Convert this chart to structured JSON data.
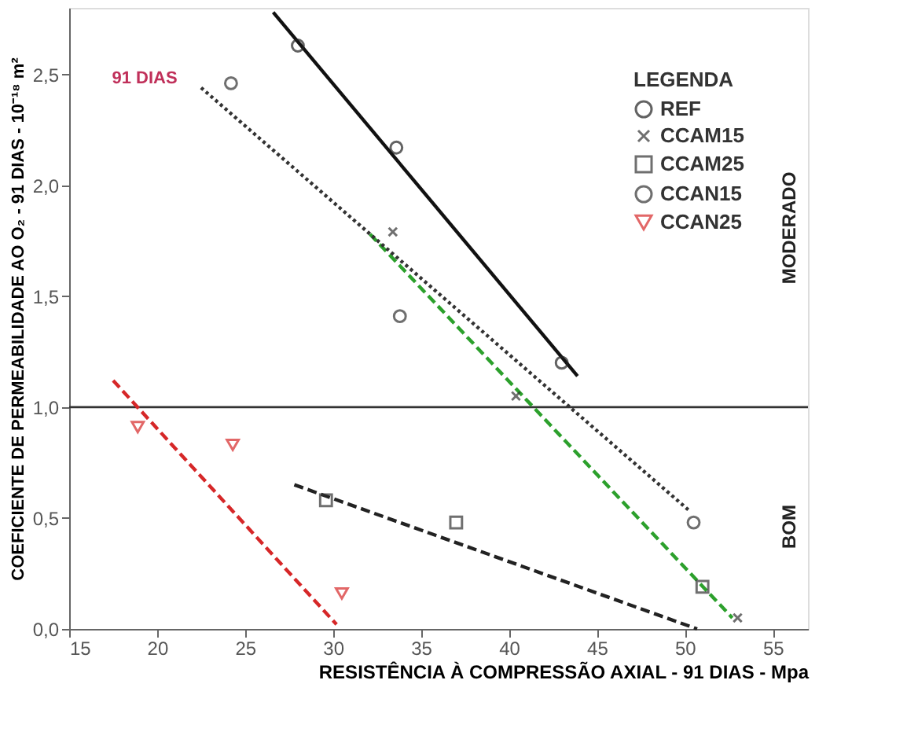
{
  "chart_data": {
    "type": "scatter",
    "xlabel": "RESISTÊNCIA À COMPRESSÃO AXIAL - 91 DIAS - Mpa",
    "ylabel": "COEFICIENTE DE PERMEABILIDADE AO O₂ - 91 DIAS - 10⁻¹⁸ m²",
    "legend_title": "LEGENDA",
    "legend": "top right",
    "grid": false,
    "xlim": [
      15,
      57
    ],
    "xticks": [
      15,
      20,
      25,
      30,
      35,
      40,
      45,
      50,
      55
    ],
    "ylim": [
      0,
      2.8
    ],
    "yticks": [
      {
        "value": 0,
        "label": "0,0"
      },
      {
        "value": 0.5,
        "label": "0,5"
      },
      {
        "value": 1,
        "label": "1,0"
      },
      {
        "value": 1.5,
        "label": "1,5"
      },
      {
        "value": 2,
        "label": "2,0"
      },
      {
        "value": 2.5,
        "label": "2,5"
      }
    ],
    "ref_lines": [
      {
        "axis": "y",
        "value": 1.0,
        "color": "#333333",
        "line_style": "solid"
      }
    ],
    "annotations": [
      "91 DIAS",
      "MODERADO",
      "BOM"
    ],
    "series": [
      {
        "name": "REF",
        "marker": "circle",
        "color": "#222222",
        "x": [
          28.0,
          33.6,
          43.0
        ],
        "values": [
          2.63,
          2.17,
          1.2
        ]
      },
      {
        "name": "CCAM15",
        "marker": "cross",
        "color": "#333333",
        "x": [
          33.4,
          40.4,
          53.0
        ],
        "values": [
          1.79,
          1.05,
          0.05
        ]
      },
      {
        "name": "CCAM25",
        "marker": "square",
        "color": "#333333",
        "x": [
          29.6,
          37.0,
          51.0
        ],
        "values": [
          0.58,
          0.48,
          0.19
        ]
      },
      {
        "name": "CCAN15",
        "marker": "circle",
        "color": "#333333",
        "x": [
          24.2,
          33.8,
          50.5
        ],
        "values": [
          2.46,
          1.41,
          0.48
        ]
      },
      {
        "name": "CCAN25",
        "marker": "triangle",
        "color": "#d62728",
        "x": [
          18.9,
          24.3,
          30.5
        ],
        "values": [
          0.91,
          0.83,
          0.16
        ]
      },
      {
        "type": "line",
        "line_style": "solid",
        "color": "#111111",
        "x": [
          26.6,
          43.9
        ],
        "values": [
          2.78,
          1.14
        ]
      },
      {
        "type": "line",
        "line_style": "dashed",
        "color": "#2ca02c",
        "x": [
          32.1,
          52.7
        ],
        "values": [
          1.78,
          0.05
        ]
      },
      {
        "type": "line",
        "line_style": "dashed",
        "color": "#222222",
        "x": [
          27.8,
          50.7
        ],
        "values": [
          0.65,
          0.0
        ]
      },
      {
        "type": "line",
        "line_style": "dotted",
        "color": "#333333",
        "x": [
          22.5,
          50.3
        ],
        "values": [
          2.44,
          0.53
        ]
      },
      {
        "type": "line",
        "line_style": "dashed",
        "color": "#d62728",
        "x": [
          17.5,
          30.2
        ],
        "values": [
          1.12,
          0.02
        ]
      }
    ]
  }
}
